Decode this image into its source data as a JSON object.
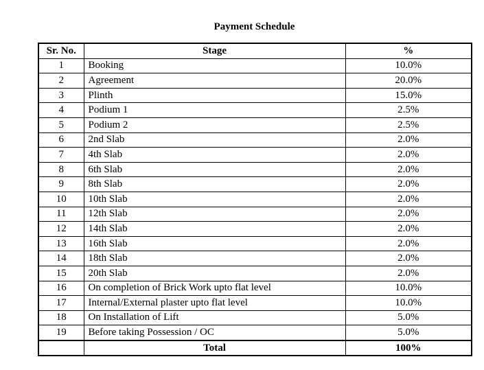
{
  "document": {
    "title": "Payment Schedule"
  },
  "table": {
    "headers": {
      "sr_no": "Sr. No.",
      "stage": "Stage",
      "percent": "%"
    },
    "rows": [
      {
        "sr": "1",
        "stage": "Booking",
        "percent": "10.0%"
      },
      {
        "sr": "2",
        "stage": "Agreement",
        "percent": "20.0%"
      },
      {
        "sr": "3",
        "stage": "Plinth",
        "percent": "15.0%"
      },
      {
        "sr": "4",
        "stage": "Podium 1",
        "percent": "2.5%"
      },
      {
        "sr": "5",
        "stage": "Podium 2",
        "percent": "2.5%"
      },
      {
        "sr": "6",
        "stage": "2nd Slab",
        "percent": "2.0%"
      },
      {
        "sr": "7",
        "stage": "4th Slab",
        "percent": "2.0%"
      },
      {
        "sr": "8",
        "stage": "6th Slab",
        "percent": "2.0%"
      },
      {
        "sr": "9",
        "stage": "8th Slab",
        "percent": "2.0%"
      },
      {
        "sr": "10",
        "stage": "10th Slab",
        "percent": "2.0%"
      },
      {
        "sr": "11",
        "stage": "12th Slab",
        "percent": "2.0%"
      },
      {
        "sr": "12",
        "stage": "14th Slab",
        "percent": "2.0%"
      },
      {
        "sr": "13",
        "stage": "16th Slab",
        "percent": "2.0%"
      },
      {
        "sr": "14",
        "stage": "18th Slab",
        "percent": "2.0%"
      },
      {
        "sr": "15",
        "stage": "20th Slab",
        "percent": "2.0%"
      },
      {
        "sr": "16",
        "stage": "On completion of Brick Work upto flat level",
        "percent": "10.0%"
      },
      {
        "sr": "17",
        "stage": "Internal/External plaster upto flat level",
        "percent": "10.0%"
      },
      {
        "sr": "18",
        "stage": "On Installation of Lift",
        "percent": "5.0%"
      },
      {
        "sr": "19",
        "stage": "Before taking Possession / OC",
        "percent": "5.0%"
      }
    ],
    "total": {
      "label": "Total",
      "percent": "100%"
    }
  }
}
